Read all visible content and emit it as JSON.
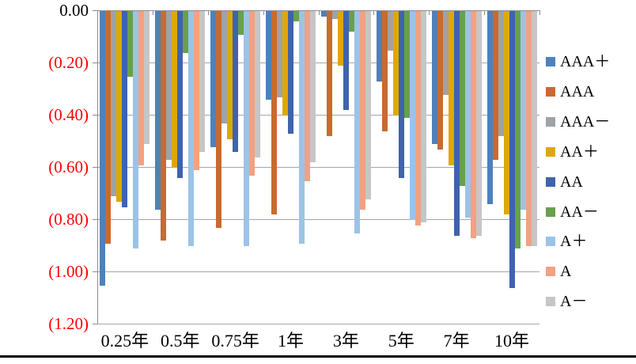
{
  "chart_data": {
    "type": "bar",
    "title": "",
    "xlabel": "",
    "ylabel": "",
    "categories": [
      "0.25年",
      "0.5年",
      "0.75年",
      "1年",
      "3年",
      "5年",
      "7年",
      "10年"
    ],
    "series": [
      {
        "name": "AAA＋",
        "color": "#4E81BC",
        "values": [
          -1.05,
          -0.76,
          -0.52,
          -0.34,
          -0.02,
          -0.27,
          -0.51,
          -0.74
        ]
      },
      {
        "name": "AAA",
        "color": "#C96A2E",
        "values": [
          -0.89,
          -0.88,
          -0.83,
          -0.78,
          -0.48,
          -0.46,
          -0.53,
          -0.57
        ]
      },
      {
        "name": "AAA－",
        "color": "#9FA2A6",
        "values": [
          -0.71,
          -0.57,
          -0.43,
          -0.33,
          -0.03,
          -0.15,
          -0.32,
          -0.48
        ]
      },
      {
        "name": "AA＋",
        "color": "#DFA800",
        "values": [
          -0.73,
          -0.6,
          -0.49,
          -0.4,
          -0.21,
          -0.4,
          -0.59,
          -0.78
        ]
      },
      {
        "name": "AA",
        "color": "#3F63AD",
        "values": [
          -0.75,
          -0.64,
          -0.54,
          -0.47,
          -0.38,
          -0.64,
          -0.86,
          -1.06
        ]
      },
      {
        "name": "AA－",
        "color": "#68A04C",
        "values": [
          -0.25,
          -0.16,
          -0.09,
          -0.04,
          -0.08,
          -0.41,
          -0.67,
          -0.91
        ]
      },
      {
        "name": "A＋",
        "color": "#9CC3E6",
        "values": [
          -0.91,
          -0.9,
          -0.9,
          -0.89,
          -0.85,
          -0.8,
          -0.79,
          -0.76
        ]
      },
      {
        "name": "A",
        "color": "#F2A183",
        "values": [
          -0.59,
          -0.61,
          -0.63,
          -0.65,
          -0.76,
          -0.82,
          -0.87,
          -0.9
        ]
      },
      {
        "name": "A－",
        "color": "#C6C6C6",
        "values": [
          -0.51,
          -0.54,
          -0.56,
          -0.58,
          -0.72,
          -0.81,
          -0.86,
          -0.9
        ]
      }
    ],
    "y_ticks": [
      {
        "label": "0.00",
        "color": "#000000"
      },
      {
        "label": "(0.20)",
        "color": "#FF0000"
      },
      {
        "label": "(0.40)",
        "color": "#FF0000"
      },
      {
        "label": "(0.60)",
        "color": "#FF0000"
      },
      {
        "label": "(0.80)",
        "color": "#FF0000"
      },
      {
        "label": "(1.00)",
        "color": "#FF0000"
      },
      {
        "label": "(1.20)",
        "color": "#FF0000"
      }
    ],
    "ylim": [
      0,
      -1.2
    ],
    "grid": true,
    "legend_position": "right",
    "grid_color": "#A6A6A6",
    "axis_color": "#8C8C8C"
  },
  "page": {
    "background": "#FFFFFF",
    "bottom_rule_color": "#000000"
  }
}
